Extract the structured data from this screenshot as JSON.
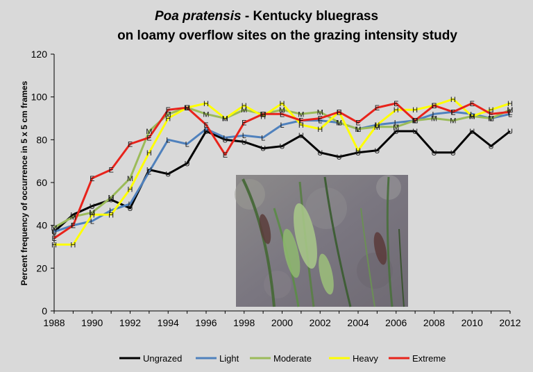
{
  "chart_data": {
    "type": "line",
    "title_italic": "Poa pratensis",
    "title_rest": " - Kentucky bluegrass",
    "title_line2": "on loamy overflow sites on the grazing intensity study",
    "ylabel": "Percent frequency of occurrence in 5 x 5 cm frames",
    "xlabel": "",
    "xlim": [
      1988,
      2012
    ],
    "ylim": [
      0,
      120
    ],
    "x_ticks": [
      "1988",
      "1990",
      "1992",
      "1994",
      "1996",
      "1998",
      "2000",
      "2002",
      "2004",
      "2006",
      "2008",
      "2010",
      "2012"
    ],
    "y_ticks": [
      "0",
      "20",
      "40",
      "60",
      "80",
      "100",
      "120"
    ],
    "grid": false,
    "legend_position": "bottom",
    "x": [
      1988,
      1989,
      1990,
      1991,
      1992,
      1993,
      1994,
      1995,
      1996,
      1997,
      1998,
      1999,
      2000,
      2001,
      2002,
      2003,
      2004,
      2005,
      2006,
      2007,
      2008,
      2009,
      2010,
      2011,
      2012
    ],
    "series": [
      {
        "name": "Ungrazed",
        "marker": "U",
        "color": "#000000",
        "values": [
          37,
          45,
          49,
          52,
          48,
          66,
          64,
          69,
          84,
          80,
          79,
          76,
          77,
          82,
          74,
          72,
          74,
          75,
          84,
          84,
          74,
          74,
          84,
          77,
          84
        ]
      },
      {
        "name": "Light",
        "marker": "L",
        "color": "#4f81bd",
        "values": [
          37,
          40,
          42,
          47,
          50,
          65,
          80,
          78,
          85,
          81,
          82,
          81,
          87,
          89,
          89,
          88,
          85,
          87,
          88,
          89,
          92,
          93,
          92,
          90,
          92
        ]
      },
      {
        "name": "Moderate",
        "marker": "M",
        "color": "#9bbb59",
        "values": [
          39,
          44,
          46,
          53,
          62,
          84,
          92,
          95,
          92,
          90,
          94,
          92,
          94,
          92,
          93,
          88,
          85,
          86,
          86,
          89,
          90,
          89,
          91,
          90,
          94
        ]
      },
      {
        "name": "Heavy",
        "marker": "H",
        "color": "#ffff00",
        "values": [
          31,
          31,
          45,
          45,
          57,
          74,
          90,
          95,
          97,
          90,
          96,
          91,
          97,
          87,
          85,
          93,
          75,
          87,
          94,
          94,
          96,
          99,
          91,
          94,
          97
        ]
      },
      {
        "name": "Extreme",
        "marker": "E",
        "color": "#e8231b",
        "values": [
          34,
          40,
          62,
          66,
          78,
          81,
          94,
          95,
          87,
          73,
          88,
          92,
          92,
          89,
          90,
          93,
          88,
          95,
          97,
          89,
          96,
          93,
          97,
          92,
          93
        ]
      }
    ]
  }
}
